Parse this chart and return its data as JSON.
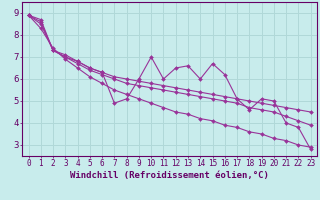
{
  "xlabel": "Windchill (Refroidissement éolien,°C)",
  "bg_color": "#c8ecec",
  "grid_color": "#b0d8d8",
  "line_color": "#993399",
  "ax_color": "#660066",
  "xlim": [
    -0.5,
    23.5
  ],
  "ylim": [
    2.5,
    9.5
  ],
  "yticks": [
    3,
    4,
    5,
    6,
    7,
    8,
    9
  ],
  "xticks": [
    0,
    1,
    2,
    3,
    4,
    5,
    6,
    7,
    8,
    9,
    10,
    11,
    12,
    13,
    14,
    15,
    16,
    17,
    18,
    19,
    20,
    21,
    22,
    23
  ],
  "series": [
    [
      8.9,
      8.7,
      7.3,
      7.1,
      6.8,
      6.5,
      6.3,
      4.9,
      5.1,
      6.0,
      7.0,
      6.0,
      6.5,
      6.6,
      6.0,
      6.7,
      6.2,
      5.1,
      4.6,
      5.1,
      5.0,
      4.0,
      3.8,
      2.8
    ],
    [
      8.9,
      8.6,
      7.3,
      7.0,
      6.8,
      6.5,
      6.3,
      6.1,
      6.0,
      5.9,
      5.8,
      5.7,
      5.6,
      5.5,
      5.4,
      5.3,
      5.2,
      5.1,
      5.0,
      4.9,
      4.8,
      4.7,
      4.6,
      4.5
    ],
    [
      8.9,
      8.5,
      7.3,
      7.0,
      6.7,
      6.4,
      6.2,
      6.0,
      5.8,
      5.7,
      5.6,
      5.5,
      5.4,
      5.3,
      5.2,
      5.1,
      5.0,
      4.9,
      4.7,
      4.6,
      4.5,
      4.3,
      4.1,
      3.9
    ],
    [
      8.9,
      8.3,
      7.4,
      6.9,
      6.5,
      6.1,
      5.8,
      5.5,
      5.3,
      5.1,
      4.9,
      4.7,
      4.5,
      4.4,
      4.2,
      4.1,
      3.9,
      3.8,
      3.6,
      3.5,
      3.3,
      3.2,
      3.0,
      2.9
    ]
  ],
  "tick_fontsize": 5.5,
  "xlabel_fontsize": 6.5
}
